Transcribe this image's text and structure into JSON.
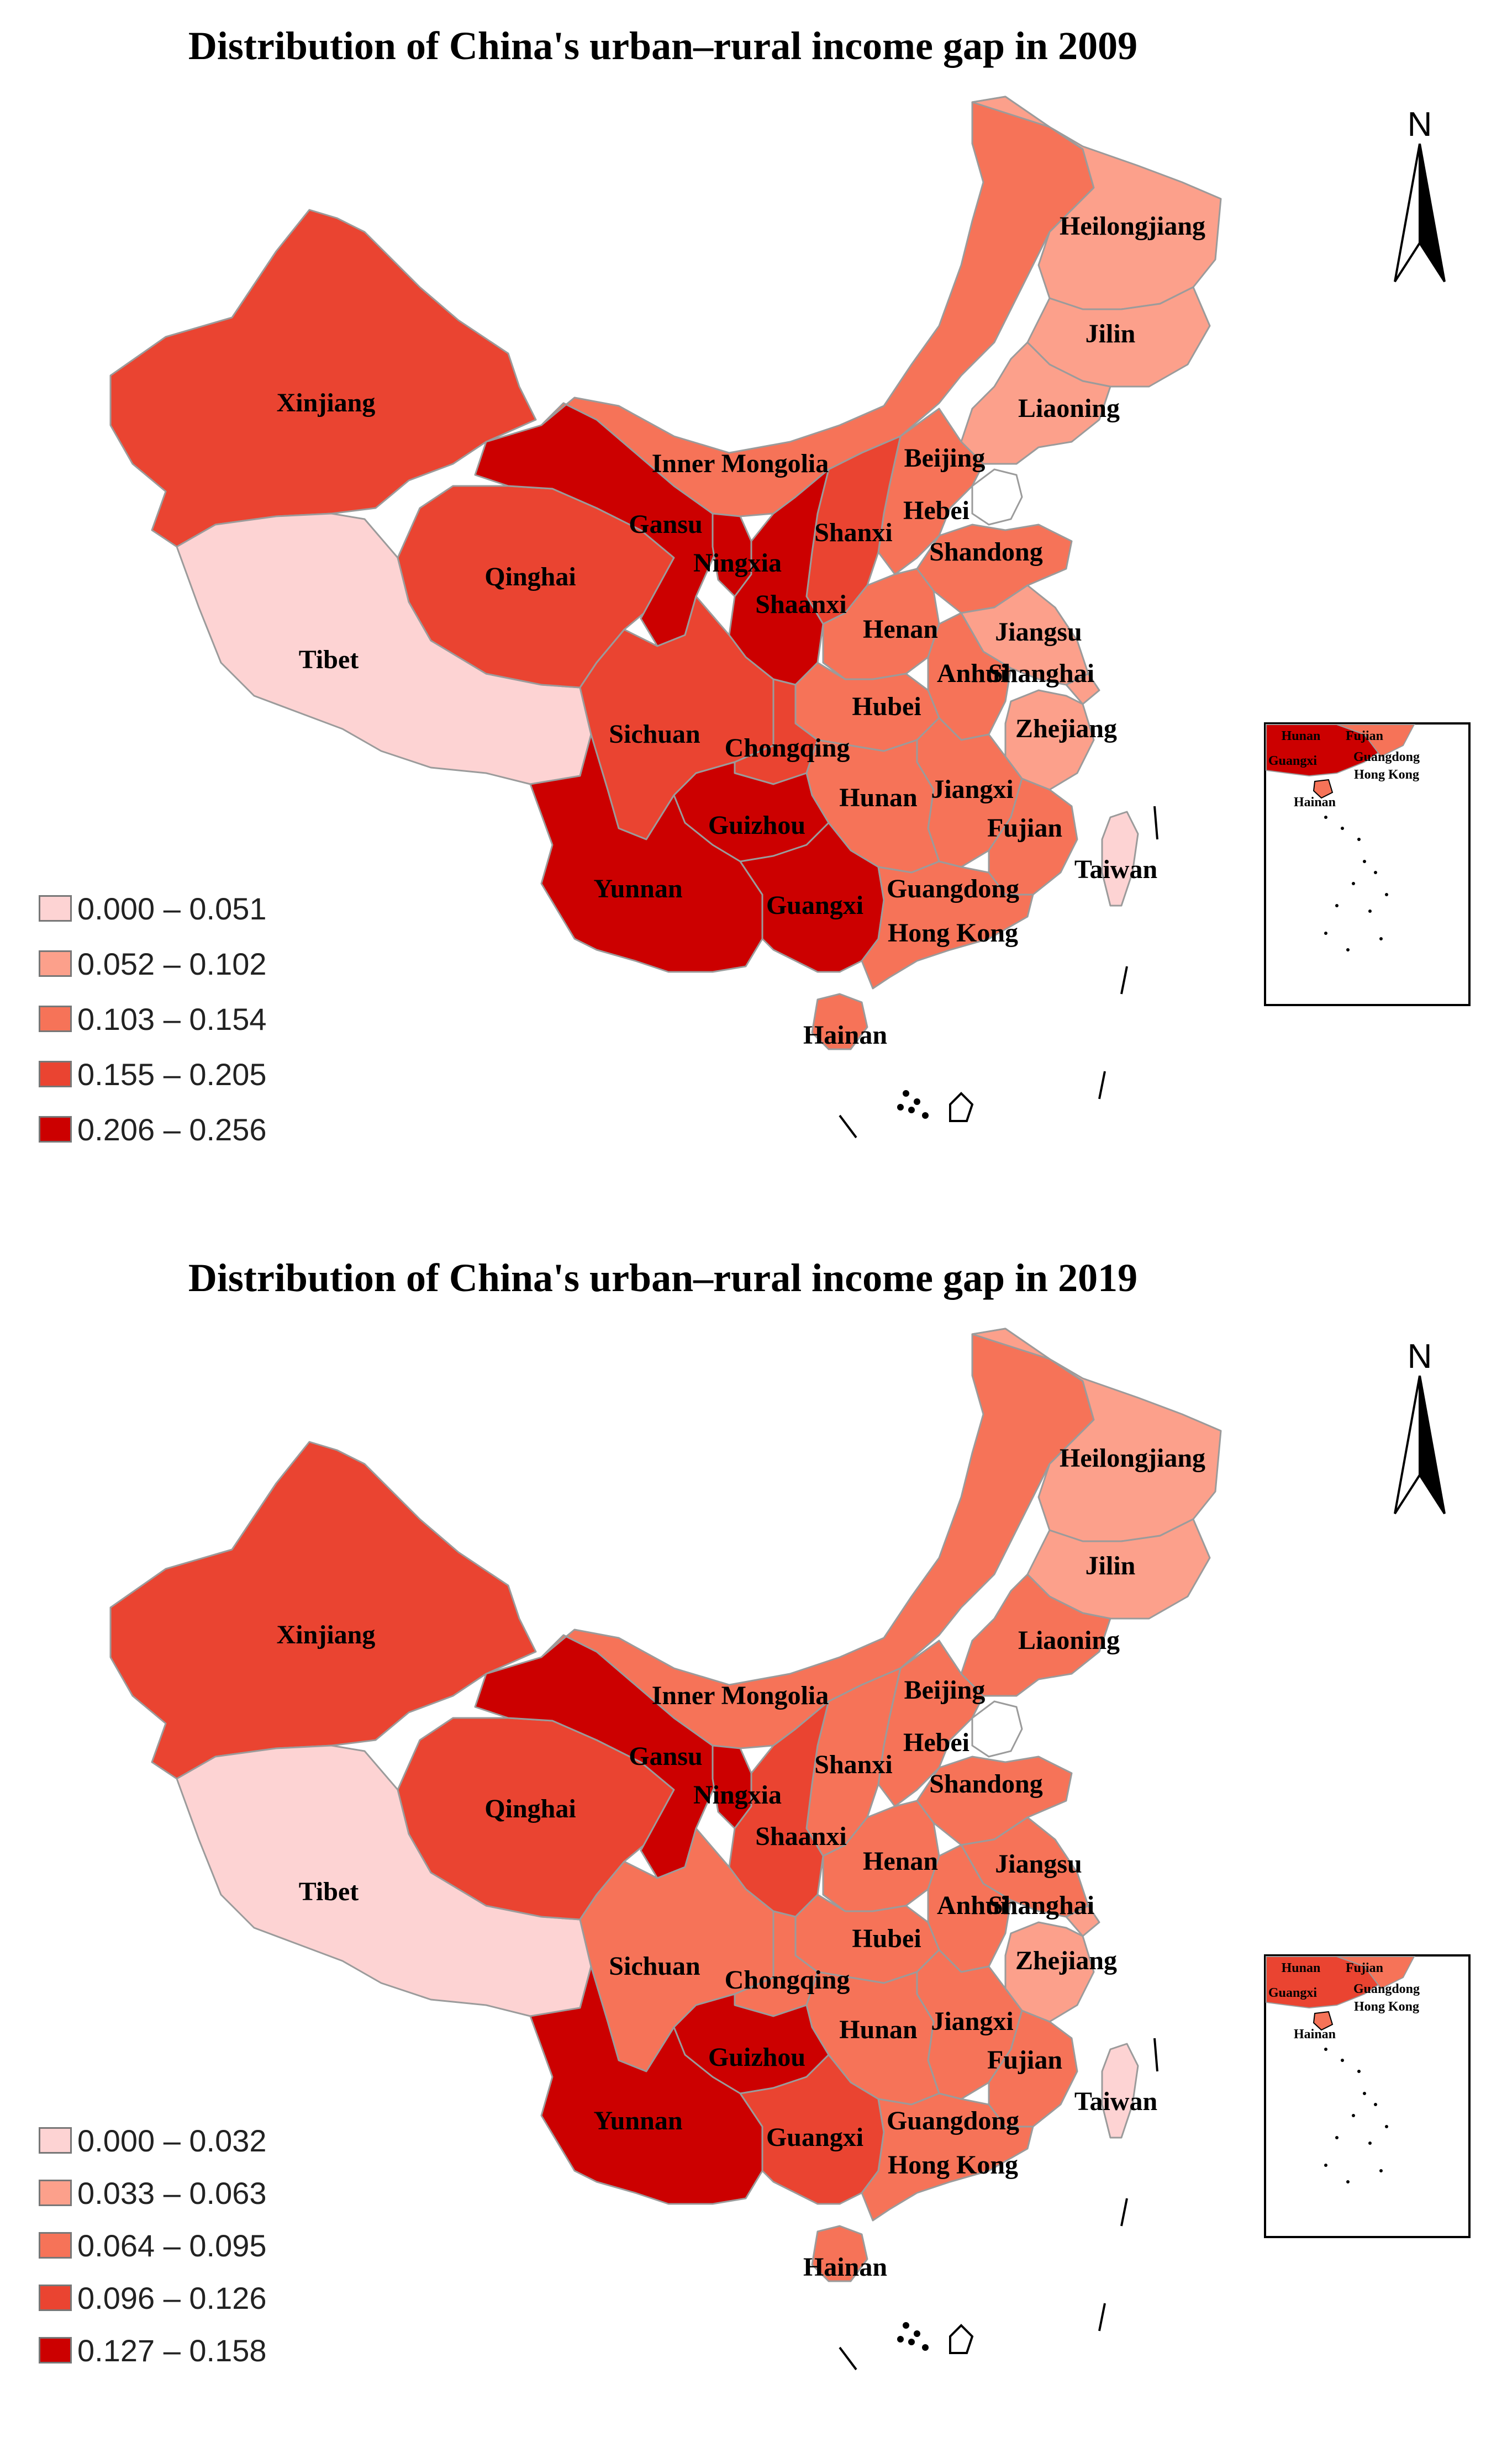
{
  "colors": {
    "c0": "#fdd3d3",
    "c1": "#fca08b",
    "c2": "#f67358",
    "c3": "#ea4431",
    "c4": "#cc0000",
    "border": "#9b9b9b",
    "water": "#ffffff"
  },
  "maps": [
    {
      "title": "Distribution of China's urban–rural income gap in 2009",
      "north_label": "N",
      "legend": [
        "0.000 – 0.051",
        "0.052 – 0.102",
        "0.103 – 0.154",
        "0.155 – 0.205",
        "0.206 – 0.256"
      ],
      "classes": {
        "Xinjiang": 3,
        "Tibet": 0,
        "Qinghai": 3,
        "Gansu": 4,
        "Inner Mongolia": 2,
        "Ningxia": 4,
        "Shaanxi": 4,
        "Shanxi": 3,
        "Sichuan": 3,
        "Chongqing": 3,
        "Yunnan": 4,
        "Guizhou": 4,
        "Guangxi": 4,
        "Heilongjiang": 1,
        "Jilin": 1,
        "Liaoning": 1,
        "Beijing": 0,
        "Hebei": 2,
        "Shandong": 2,
        "Henan": 2,
        "Hubei": 2,
        "Hunan": 2,
        "Jiangxi": 2,
        "Anhui": 2,
        "Jiangsu": 1,
        "Shanghai": 1,
        "Zhejiang": 1,
        "Fujian": 2,
        "Guangdong": 2,
        "Hainan": 2,
        "Taiwan": 0
      },
      "labels": [
        "Heilongjiang",
        "Jilin",
        "Liaoning",
        "Beijing",
        "Inner Mongolia",
        "Xinjiang",
        "Gansu",
        "Hebei",
        "Shanxi",
        "Shandong",
        "Ningxia",
        "Qinghai",
        "Shaanxi",
        "Henan",
        "Jiangsu",
        "Tibet",
        "Anhui",
        "Shanghai",
        "Hubei",
        "Sichuan",
        "Chongqing",
        "Zhejiang",
        "Jiangxi",
        "Hunan",
        "Fujian",
        "Guizhou",
        "Taiwan",
        "Yunnan",
        "Guangdong",
        "Guangxi",
        "Hong Kong",
        "Hainan"
      ],
      "inset_labels": [
        "Hunan",
        "Fujian",
        "Guangxi",
        "Guangdong",
        "Hong Kong",
        "Hainan"
      ]
    },
    {
      "title": "Distribution of China's urban–rural income gap in 2019",
      "north_label": "N",
      "legend": [
        "0.000 – 0.032",
        "0.033 – 0.063",
        "0.064 – 0.095",
        "0.096 – 0.126",
        "0.127 – 0.158"
      ],
      "classes": {
        "Xinjiang": 3,
        "Tibet": 0,
        "Qinghai": 3,
        "Gansu": 4,
        "Inner Mongolia": 2,
        "Ningxia": 4,
        "Shaanxi": 3,
        "Shanxi": 2,
        "Sichuan": 2,
        "Chongqing": 2,
        "Yunnan": 4,
        "Guizhou": 4,
        "Guangxi": 3,
        "Heilongjiang": 1,
        "Jilin": 1,
        "Liaoning": 2,
        "Beijing": 0,
        "Hebei": 2,
        "Shandong": 2,
        "Henan": 2,
        "Hubei": 2,
        "Hunan": 2,
        "Jiangxi": 2,
        "Anhui": 2,
        "Jiangsu": 2,
        "Shanghai": 1,
        "Zhejiang": 1,
        "Fujian": 2,
        "Guangdong": 2,
        "Hainan": 2,
        "Taiwan": 0
      },
      "labels": [
        "Heilongjiang",
        "Jilin",
        "Liaoning",
        "Beijing",
        "Inner Mongolia",
        "Xinjiang",
        "Gansu",
        "Hebei",
        "Shanxi",
        "Shandong",
        "Ningxia",
        "Qinghai",
        "Shaanxi",
        "Henan",
        "Jiangsu",
        "Tibet",
        "Anhui",
        "Shanghai",
        "Hubei",
        "Sichuan",
        "Chongqing",
        "Zhejiang",
        "Jiangxi",
        "Hunan",
        "Fujian",
        "Guizhou",
        "Taiwan",
        "Yunnan",
        "Guangdong",
        "Guangxi",
        "Hong Kong",
        "Hainan"
      ],
      "inset_labels": [
        "Hunan",
        "Fujian",
        "Guangxi",
        "Guangdong",
        "Hong Kong",
        "Hainan"
      ]
    }
  ]
}
